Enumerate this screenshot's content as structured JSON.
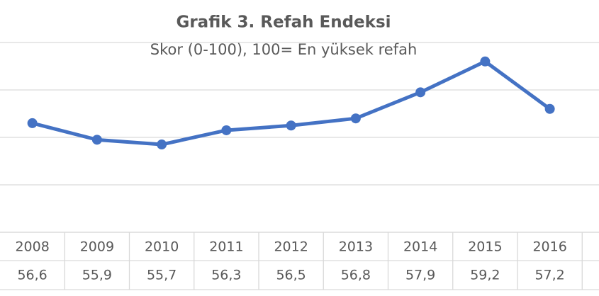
{
  "chart_data": {
    "type": "line",
    "title": "Grafik 3. Refah Endeksi",
    "subtitle": "Skor (0-100), 100= En yüksek refah",
    "categories": [
      "2008",
      "2009",
      "2010",
      "2011",
      "2012",
      "2013",
      "2014",
      "2015",
      "2016"
    ],
    "values": [
      56.6,
      55.9,
      55.7,
      56.3,
      56.5,
      56.8,
      57.9,
      59.2,
      57.2
    ],
    "value_labels": [
      "56,6",
      "55,9",
      "55,7",
      "56,3",
      "56,5",
      "56,8",
      "57,9",
      "59,2",
      "57,2"
    ],
    "color": "#4472c4",
    "ylim": [
      52,
      61
    ],
    "yticks": [
      52,
      54,
      56,
      58,
      60
    ],
    "grid": true
  }
}
